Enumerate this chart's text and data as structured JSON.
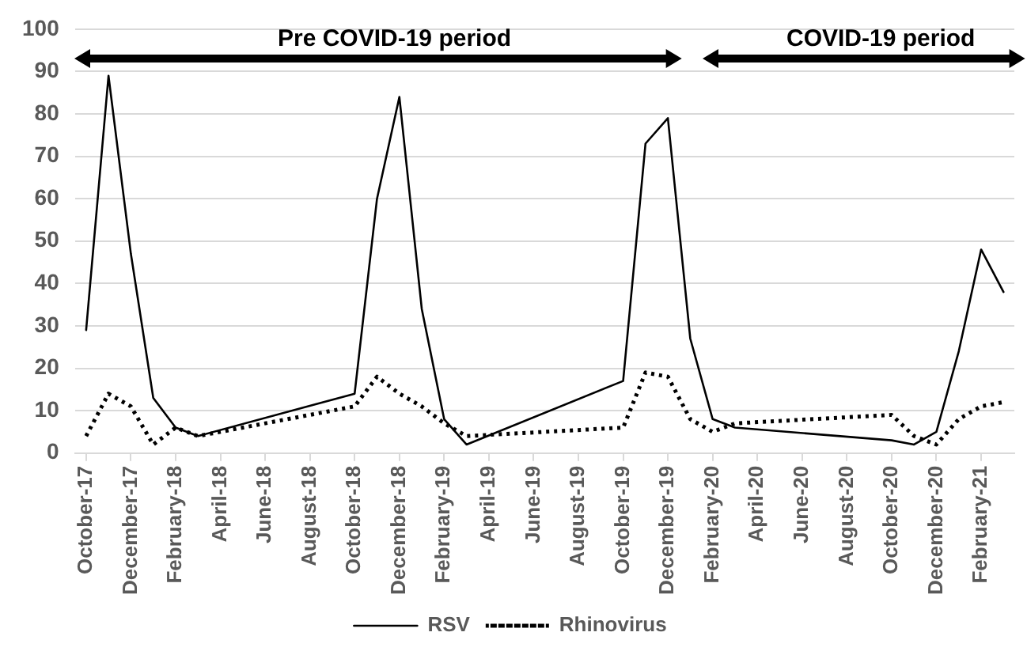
{
  "chart_data": {
    "type": "line",
    "annotations": [
      "Pre COVID-19 period",
      "COVID-19 period"
    ],
    "xlim": [
      "2017-09-16",
      "2021-03-16"
    ],
    "xticks": [
      {
        "value": "2017-10",
        "label": "October-17"
      },
      {
        "value": "2017-12",
        "label": "December-17"
      },
      {
        "value": "2018-02",
        "label": "February-18"
      },
      {
        "value": "2018-04",
        "label": "April-18"
      },
      {
        "value": "2018-06",
        "label": "June-18"
      },
      {
        "value": "2018-08",
        "label": "August-18"
      },
      {
        "value": "2018-10",
        "label": "October-18"
      },
      {
        "value": "2018-12",
        "label": "December-18"
      },
      {
        "value": "2019-02",
        "label": "February-19"
      },
      {
        "value": "2019-04",
        "label": "April-19"
      },
      {
        "value": "2019-06",
        "label": "June-19"
      },
      {
        "value": "2019-08",
        "label": "August-19"
      },
      {
        "value": "2019-10",
        "label": "October-19"
      },
      {
        "value": "2019-12",
        "label": "December-19"
      },
      {
        "value": "2020-02",
        "label": "February-20"
      },
      {
        "value": "2020-04",
        "label": "April-20"
      },
      {
        "value": "2020-06",
        "label": "June-20"
      },
      {
        "value": "2020-08",
        "label": "August-20"
      },
      {
        "value": "2020-10",
        "label": "October-20"
      },
      {
        "value": "2020-12",
        "label": "December-20"
      },
      {
        "value": "2021-02",
        "label": "February-21"
      }
    ],
    "ylim": [
      0,
      100
    ],
    "yticks": [
      0,
      10,
      20,
      30,
      40,
      50,
      60,
      70,
      80,
      90,
      100
    ],
    "grid": "y",
    "legend": "bottom",
    "marker": "none",
    "series": [
      {
        "name": "RSV",
        "color": "#000000",
        "line_style": "solid",
        "x": [
          "2017-10",
          "2017-11",
          "2017-12",
          "2018-01",
          "2018-02",
          "2018-03",
          "2018-10",
          "2018-11",
          "2018-12",
          "2019-01",
          "2019-02",
          "2019-03",
          "2019-10",
          "2019-11",
          "2019-12",
          "2020-01",
          "2020-02",
          "2020-03",
          "2020-10",
          "2020-11",
          "2020-12",
          "2021-01",
          "2021-02",
          "2021-03"
        ],
        "values": [
          29,
          89,
          47,
          13,
          6,
          4,
          14,
          60,
          84,
          34,
          8,
          2,
          17,
          73,
          79,
          27,
          8,
          6,
          3,
          2,
          5,
          24,
          48,
          38
        ]
      },
      {
        "name": "Rhinovirus",
        "color": "#000000",
        "line_style": "dotted",
        "x": [
          "2017-10",
          "2017-11",
          "2017-12",
          "2018-01",
          "2018-02",
          "2018-03",
          "2018-10",
          "2018-11",
          "2018-12",
          "2019-01",
          "2019-02",
          "2019-03",
          "2019-10",
          "2019-11",
          "2019-12",
          "2020-01",
          "2020-02",
          "2020-03",
          "2020-10",
          "2020-11",
          "2020-12",
          "2021-01",
          "2021-02",
          "2021-03"
        ],
        "values": [
          4,
          14,
          11,
          2,
          6,
          4,
          11,
          18,
          14,
          11,
          7,
          4,
          6,
          19,
          18,
          8,
          5,
          7,
          9,
          4,
          2,
          8,
          11,
          12
        ]
      }
    ]
  }
}
